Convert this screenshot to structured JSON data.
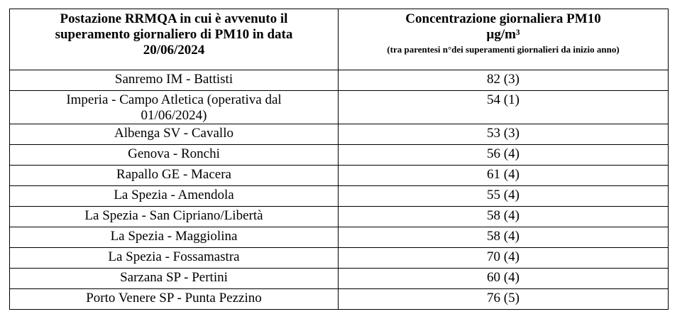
{
  "header": {
    "station": "Postazione RRMQA in cui è avvenuto il superamento giornaliero di PM10 in data 20/06/2024",
    "concentration_title": "Concentrazione giornaliera PM10",
    "concentration_unit": "µg/m³",
    "concentration_note": "(tra parentesi n°dei superamenti giornalieri da inizio anno)"
  },
  "table": {
    "rows": [
      [
        "Sanremo IM - Battisti",
        "82 (3)"
      ],
      [
        "Imperia - Campo Atletica (operativa dal 01/06/2024)",
        "54 (1)"
      ],
      [
        "Albenga SV - Cavallo",
        "53 (3)"
      ],
      [
        "Genova - Ronchi",
        "56 (4)"
      ],
      [
        "Rapallo GE - Macera",
        "61 (4)"
      ],
      [
        "La Spezia - Amendola",
        "55 (4)"
      ],
      [
        "La Spezia - San Cipriano/Libertà",
        "58 (4)"
      ],
      [
        "La Spezia - Maggiolina",
        "58 (4)"
      ],
      [
        "La Spezia - Fossamastra",
        "70 (4)"
      ],
      [
        "Sarzana SP - Pertini",
        "60 (4)"
      ],
      [
        "Porto Venere SP - Punta Pezzino",
        "76 (5)"
      ]
    ]
  }
}
